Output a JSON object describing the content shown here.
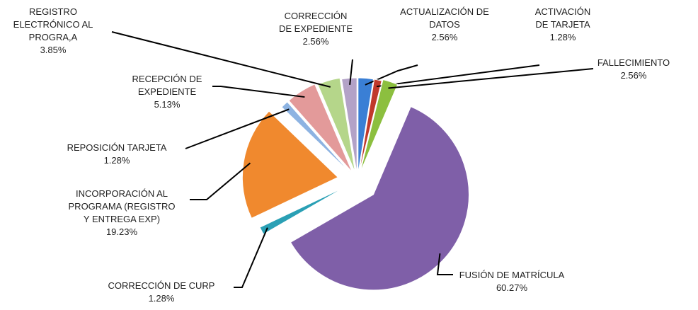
{
  "chart_data": {
    "type": "pie",
    "categories": [
      "ACTUALIZACIÓN DE\nDATOS",
      "ACTIVACIÓN\nDE TARJETA",
      "FALLECIMIENTO",
      "FUSIÓN DE MATRÍCULA",
      "CORRECCIÓN DE CURP",
      "INCORPORACIÓN AL\nPROGRAMA (REGISTRO\nY ENTREGA EXP)",
      "REPOSICIÓN TARJETA",
      "RECEPCIÓN DE\nEXPEDIENTE",
      "REGISTRO\nELECTRÓNICO AL\nPROGRA,A",
      "CORRECCIÓN\nDE EXPEDIENTE"
    ],
    "values": [
      2.56,
      1.28,
      2.56,
      60.27,
      1.28,
      19.23,
      1.28,
      5.13,
      3.85,
      2.56
    ],
    "value_labels": [
      "2.56%",
      "1.28%",
      "2.56%",
      "60.27%",
      "1.28%",
      "19.23%",
      "1.28%",
      "5.13%",
      "3.85%",
      "2.56%"
    ],
    "colors": [
      "#3a7fd5",
      "#c0392b",
      "#8cbf3f",
      "#7f5fa8",
      "#2aa0b5",
      "#f0892e",
      "#8db3e2",
      "#e39a9a",
      "#b5d68a",
      "#b3a2c7"
    ]
  }
}
